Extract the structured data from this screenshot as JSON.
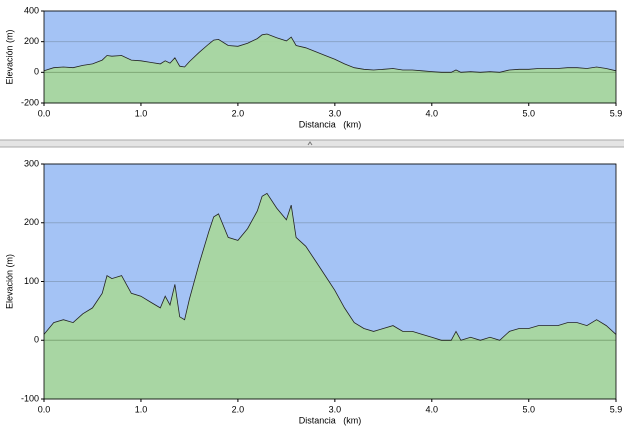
{
  "chart_data": [
    {
      "type": "area",
      "xlabel": "Distancia   (km)",
      "ylabel": "Elevación (m)",
      "x": [
        0,
        0.1,
        0.2,
        0.3,
        0.4,
        0.5,
        0.6,
        0.65,
        0.7,
        0.8,
        0.9,
        1.0,
        1.1,
        1.2,
        1.25,
        1.3,
        1.35,
        1.4,
        1.45,
        1.5,
        1.6,
        1.7,
        1.75,
        1.8,
        1.9,
        2.0,
        2.1,
        2.2,
        2.25,
        2.3,
        2.4,
        2.5,
        2.55,
        2.6,
        2.7,
        2.8,
        2.9,
        3.0,
        3.1,
        3.2,
        3.3,
        3.4,
        3.5,
        3.6,
        3.7,
        3.8,
        3.9,
        4.0,
        4.1,
        4.2,
        4.25,
        4.3,
        4.4,
        4.5,
        4.6,
        4.7,
        4.8,
        4.9,
        5.0,
        5.1,
        5.2,
        5.3,
        5.4,
        5.5,
        5.6,
        5.7,
        5.8,
        5.9
      ],
      "values": [
        10,
        30,
        35,
        30,
        45,
        55,
        80,
        110,
        105,
        110,
        80,
        75,
        65,
        55,
        75,
        60,
        95,
        40,
        35,
        70,
        130,
        185,
        210,
        215,
        175,
        170,
        190,
        220,
        245,
        250,
        225,
        205,
        230,
        175,
        160,
        135,
        110,
        85,
        55,
        30,
        20,
        15,
        20,
        25,
        15,
        15,
        10,
        5,
        0,
        0,
        15,
        0,
        5,
        0,
        5,
        0,
        15,
        20,
        20,
        25,
        25,
        25,
        30,
        30,
        25,
        35,
        25,
        10
      ],
      "color": "#a8d89a",
      "background": "#a4c3f5",
      "xlim": [
        0,
        5.9
      ],
      "ylim": [
        -200,
        400
      ],
      "xticks": [
        {
          "value": 0,
          "label": "0.0"
        },
        {
          "value": 1,
          "label": "1.0"
        },
        {
          "value": 2,
          "label": "2.0"
        },
        {
          "value": 3,
          "label": "3.0"
        },
        {
          "value": 4,
          "label": "4.0"
        },
        {
          "value": 5,
          "label": "5.0"
        },
        5.9
      ],
      "yticks": [
        -200,
        0,
        200,
        400
      ],
      "grid": true
    },
    {
      "type": "area",
      "xlabel": "Distancia   (km)",
      "ylabel": "Elevación (m)",
      "x": [
        0,
        0.1,
        0.2,
        0.3,
        0.4,
        0.5,
        0.6,
        0.65,
        0.7,
        0.8,
        0.9,
        1.0,
        1.1,
        1.2,
        1.25,
        1.3,
        1.35,
        1.4,
        1.45,
        1.5,
        1.6,
        1.7,
        1.75,
        1.8,
        1.9,
        2.0,
        2.1,
        2.2,
        2.25,
        2.3,
        2.4,
        2.5,
        2.55,
        2.6,
        2.7,
        2.8,
        2.9,
        3.0,
        3.1,
        3.2,
        3.3,
        3.4,
        3.5,
        3.6,
        3.7,
        3.8,
        3.9,
        4.0,
        4.1,
        4.2,
        4.25,
        4.3,
        4.4,
        4.5,
        4.6,
        4.7,
        4.8,
        4.9,
        5.0,
        5.1,
        5.2,
        5.3,
        5.4,
        5.5,
        5.6,
        5.7,
        5.8,
        5.9
      ],
      "values": [
        10,
        30,
        35,
        30,
        45,
        55,
        80,
        110,
        105,
        110,
        80,
        75,
        65,
        55,
        75,
        60,
        95,
        40,
        35,
        70,
        130,
        185,
        210,
        215,
        175,
        170,
        190,
        220,
        245,
        250,
        225,
        205,
        230,
        175,
        160,
        135,
        110,
        85,
        55,
        30,
        20,
        15,
        20,
        25,
        15,
        15,
        10,
        5,
        0,
        0,
        15,
        0,
        5,
        0,
        5,
        0,
        15,
        20,
        20,
        25,
        25,
        25,
        30,
        30,
        25,
        35,
        25,
        10
      ],
      "color": "#a8d89a",
      "background": "#a4c3f5",
      "xlim": [
        0,
        5.9
      ],
      "ylim": [
        -100,
        300
      ],
      "xticks": [
        {
          "value": 0,
          "label": "0.0"
        },
        {
          "value": 1,
          "label": "1.0"
        },
        {
          "value": 2,
          "label": "2.0"
        },
        {
          "value": 3,
          "label": "3.0"
        },
        {
          "value": 4,
          "label": "4.0"
        },
        {
          "value": 5,
          "label": "5.0"
        },
        5.9
      ],
      "yticks": [
        -100,
        0,
        100,
        200,
        300
      ],
      "grid": true
    }
  ]
}
